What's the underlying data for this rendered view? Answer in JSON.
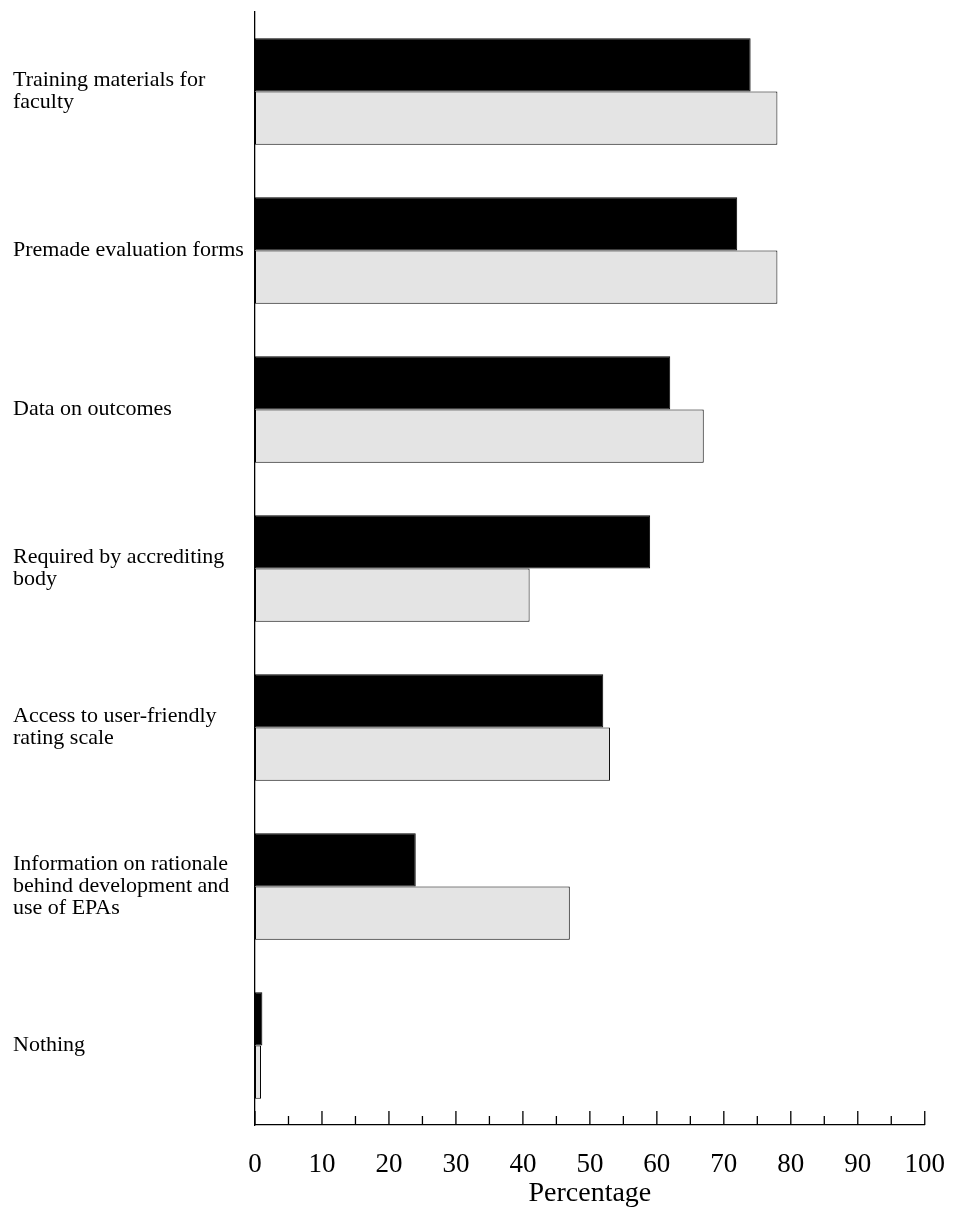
{
  "chart_data": {
    "type": "bar",
    "orientation": "horizontal",
    "xlabel": "Percentage",
    "categories": [
      "Training materials for faculty",
      "Premade evaluation forms",
      "Data on outcomes",
      "Required by accrediting body",
      "Access to user-friendly rating scale",
      "Information on rationale behind development and use of EPAs",
      "Nothing"
    ],
    "series": [
      {
        "color": "#000000",
        "values": [
          74,
          72,
          62,
          59,
          52,
          24,
          1.1
        ]
      },
      {
        "color": "#e4e4e4",
        "values": [
          78,
          78,
          67,
          41,
          53,
          47,
          0.9
        ]
      }
    ],
    "xlim": [
      0,
      100
    ],
    "xticks": [
      0,
      {
        "value": 5,
        "label": null
      },
      10,
      {
        "value": 15,
        "label": null
      },
      20,
      {
        "value": 25,
        "label": null
      },
      30,
      {
        "value": 35,
        "label": null
      },
      40,
      {
        "value": 45,
        "label": null
      },
      50,
      {
        "value": 55,
        "label": null
      },
      60,
      {
        "value": 65,
        "label": null
      },
      70,
      {
        "value": 75,
        "label": null
      },
      80,
      {
        "value": 85,
        "label": null
      },
      90,
      {
        "value": 95,
        "label": null
      },
      100
    ],
    "legend": false
  }
}
